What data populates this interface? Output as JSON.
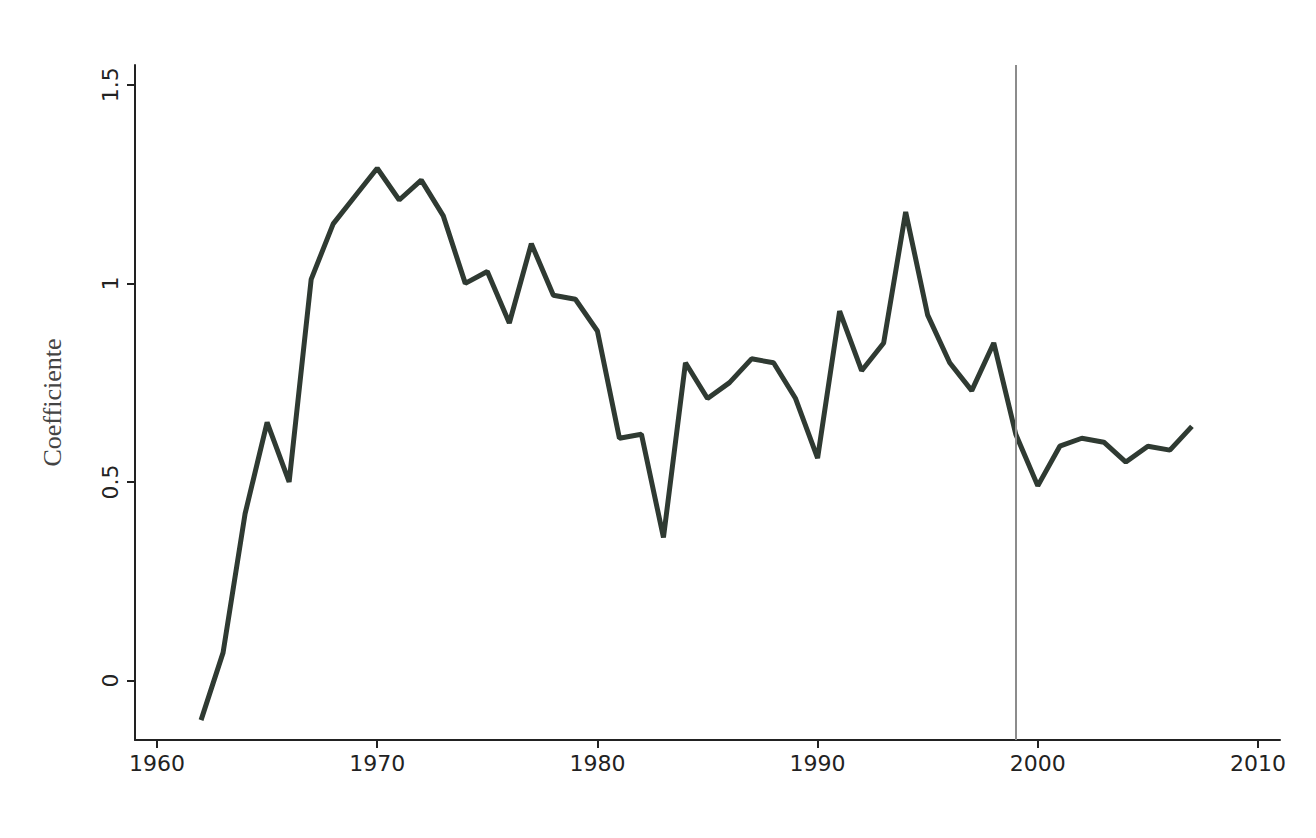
{
  "chart_data": {
    "type": "line",
    "y_label": "Coefficiente",
    "x": [
      1962,
      1963,
      1964,
      1965,
      1966,
      1967,
      1968,
      1969,
      1970,
      1971,
      1972,
      1973,
      1974,
      1975,
      1976,
      1977,
      1978,
      1979,
      1980,
      1981,
      1982,
      1983,
      1984,
      1985,
      1986,
      1987,
      1988,
      1989,
      1990,
      1991,
      1992,
      1993,
      1994,
      1995,
      1996,
      1997,
      1998,
      1999,
      2000,
      2001,
      2002,
      2003,
      2004,
      2005,
      2006,
      2007
    ],
    "values": [
      -0.1,
      0.07,
      0.42,
      0.65,
      0.5,
      1.01,
      1.15,
      1.22,
      1.29,
      1.21,
      1.26,
      1.17,
      1.0,
      1.03,
      0.9,
      1.1,
      0.97,
      0.96,
      0.88,
      0.61,
      0.62,
      0.36,
      0.8,
      0.71,
      0.75,
      0.81,
      0.8,
      0.71,
      0.56,
      0.93,
      0.78,
      0.85,
      1.18,
      0.92,
      0.8,
      0.73,
      0.85,
      0.62,
      0.49,
      0.59,
      0.61,
      0.6,
      0.55,
      0.59,
      0.58,
      0.64
    ],
    "color": "#2f3a32",
    "reference_line": {
      "x": 1999,
      "color": "#8c8c8c"
    },
    "xlim": [
      1959,
      2011
    ],
    "xticks": [
      1960,
      1970,
      1980,
      1990,
      2000,
      2010
    ],
    "ylim": [
      -0.15,
      1.55
    ],
    "yticks": [
      0,
      0.5,
      1,
      1.5
    ],
    "grid": false
  }
}
